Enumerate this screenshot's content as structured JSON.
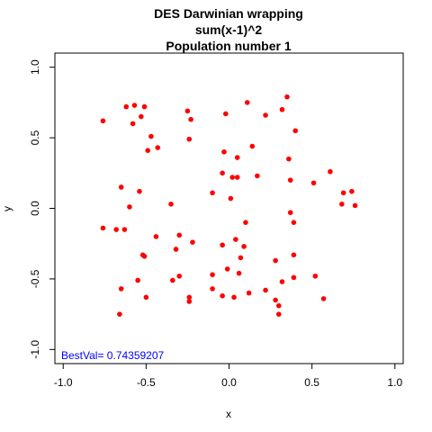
{
  "chart_data": {
    "type": "scatter",
    "title_lines": [
      "DES Darwinian wrapping",
      "sum(x-1)^2",
      "Population number 1"
    ],
    "xlabel": "x",
    "ylabel": "y",
    "xlim": [
      -1.05,
      1.05
    ],
    "ylim": [
      -1.1,
      1.1
    ],
    "xticks": [
      -1.0,
      -0.5,
      0.0,
      0.5,
      1.0
    ],
    "xtick_labels": [
      "-1.0",
      "-0.5",
      "0.0",
      "0.5",
      "1.0"
    ],
    "yticks": [
      -1.0,
      -0.5,
      0.0,
      0.5,
      1.0
    ],
    "ytick_labels": [
      "-1.0",
      "-0.5",
      "0.0",
      "0.5",
      "1.0"
    ],
    "point_color": "#ff0000",
    "annotation_color": "#0000ff",
    "annotation": "BestVal= 0.74359207",
    "points": [
      [
        -0.76,
        0.62
      ],
      [
        -0.62,
        0.72
      ],
      [
        -0.57,
        0.73
      ],
      [
        -0.51,
        0.72
      ],
      [
        -0.58,
        0.6
      ],
      [
        -0.53,
        0.65
      ],
      [
        -0.47,
        0.51
      ],
      [
        -0.43,
        0.43
      ],
      [
        -0.49,
        0.41
      ],
      [
        -0.25,
        0.69
      ],
      [
        -0.23,
        0.63
      ],
      [
        -0.24,
        0.49
      ],
      [
        -0.02,
        0.67
      ],
      [
        0.11,
        0.75
      ],
      [
        0.22,
        0.66
      ],
      [
        0.32,
        0.7
      ],
      [
        0.35,
        0.79
      ],
      [
        0.4,
        0.55
      ],
      [
        -0.03,
        0.4
      ],
      [
        0.05,
        0.36
      ],
      [
        0.14,
        0.44
      ],
      [
        0.36,
        0.35
      ],
      [
        -0.04,
        0.25
      ],
      [
        0.02,
        0.22
      ],
      [
        0.05,
        0.22
      ],
      [
        0.17,
        0.23
      ],
      [
        0.37,
        0.2
      ],
      [
        0.51,
        0.18
      ],
      [
        0.61,
        0.26
      ],
      [
        -0.65,
        0.15
      ],
      [
        -0.54,
        0.12
      ],
      [
        -0.1,
        0.11
      ],
      [
        0.01,
        0.07
      ],
      [
        0.69,
        0.11
      ],
      [
        0.74,
        0.12
      ],
      [
        0.68,
        0.03
      ],
      [
        0.76,
        0.02
      ],
      [
        -0.6,
        0.01
      ],
      [
        -0.35,
        0.03
      ],
      [
        0.37,
        -0.03
      ],
      [
        -0.76,
        -0.14
      ],
      [
        -0.68,
        -0.15
      ],
      [
        -0.63,
        -0.15
      ],
      [
        -0.44,
        -0.2
      ],
      [
        0.1,
        -0.1
      ],
      [
        0.39,
        -0.1
      ],
      [
        -0.3,
        -0.19
      ],
      [
        -0.22,
        -0.24
      ],
      [
        -0.04,
        -0.26
      ],
      [
        0.04,
        -0.22
      ],
      [
        0.09,
        -0.27
      ],
      [
        -0.32,
        -0.29
      ],
      [
        0.07,
        -0.35
      ],
      [
        -0.51,
        -0.34
      ],
      [
        -0.52,
        -0.33
      ],
      [
        0.28,
        -0.37
      ],
      [
        0.39,
        -0.33
      ],
      [
        -0.01,
        -0.43
      ],
      [
        0.06,
        -0.46
      ],
      [
        -0.1,
        -0.47
      ],
      [
        -0.3,
        -0.48
      ],
      [
        -0.34,
        -0.51
      ],
      [
        -0.55,
        -0.51
      ],
      [
        0.32,
        -0.52
      ],
      [
        0.39,
        -0.49
      ],
      [
        0.52,
        -0.48
      ],
      [
        -0.65,
        -0.57
      ],
      [
        -0.1,
        -0.57
      ],
      [
        -0.04,
        -0.62
      ],
      [
        0.03,
        -0.63
      ],
      [
        0.12,
        -0.6
      ],
      [
        0.22,
        -0.58
      ],
      [
        -0.24,
        -0.63
      ],
      [
        -0.24,
        -0.66
      ],
      [
        -0.5,
        -0.63
      ],
      [
        0.28,
        -0.65
      ],
      [
        0.3,
        -0.69
      ],
      [
        0.57,
        -0.64
      ],
      [
        -0.66,
        -0.75
      ],
      [
        0.3,
        -0.75
      ]
    ]
  }
}
